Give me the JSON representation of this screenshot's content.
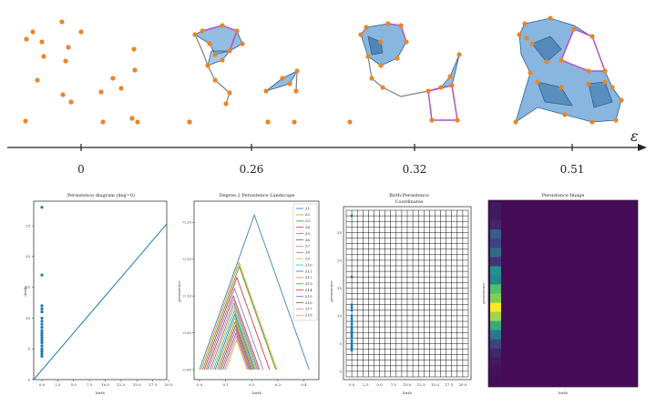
{
  "timeline": {
    "axis_symbol": "ε",
    "ticks": [
      "0",
      "0.26",
      "0.32",
      "0.51"
    ]
  },
  "colors": {
    "point": "#e8852a",
    "edge": "#7f7f7f",
    "simplex": "#3a86c8",
    "hole": "#b44fc4",
    "series_blue": "#1f77b4"
  },
  "filtration_points": [
    [
      68,
      24
    ],
    [
      36,
      35
    ],
    [
      89,
      35
    ],
    [
      46,
      46
    ],
    [
      29,
      43
    ],
    [
      75,
      52
    ],
    [
      147,
      54
    ],
    [
      48,
      62
    ],
    [
      72,
      67
    ],
    [
      148,
      77
    ],
    [
      41,
      88
    ],
    [
      124,
      86
    ],
    [
      111,
      101
    ],
    [
      69,
      104
    ],
    [
      78,
      112
    ],
    [
      133,
      97
    ],
    [
      28,
      133
    ],
    [
      113,
      134
    ],
    [
      145,
      130
    ],
    [
      151,
      134
    ],
    [
      208,
      134
    ],
    [
      294,
      134
    ]
  ],
  "panels": {
    "diagram": {
      "title": "Persistence diagram (deg=0)",
      "xlabel": "birth",
      "ylabel": "death",
      "x_ticks": [
        "0.0",
        "2.5",
        "5.0",
        "7.5",
        "10.0",
        "12.5",
        "15.0",
        "17.5",
        "20.0"
      ],
      "y_ticks": [
        "0",
        "5",
        "10",
        "15",
        "20",
        "25"
      ]
    },
    "landscape": {
      "title": "Degree 2 Persistence Landscape",
      "xlabel": "birth",
      "ylabel": "persistence",
      "x_ticks": [
        "0.0",
        "0.1",
        "0.2",
        "0.3",
        "0.4"
      ],
      "y_ticks": [
        "0.00",
        "0.05",
        "0.10",
        "0.15",
        "0.20"
      ],
      "legend": [
        "λ1",
        "λ2",
        "λ3",
        "λ4",
        "λ5",
        "λ6",
        "λ7",
        "λ8",
        "λ9",
        "λ10",
        "λ11",
        "λ12",
        "λ13",
        "λ14",
        "λ15",
        "λ16",
        "λ17",
        "λ18"
      ]
    },
    "coords": {
      "title_line1": "Birth-Persistence",
      "title_line2": "Coordinates",
      "xlabel": "birth",
      "ylabel": "persistence",
      "x_ticks": [
        "0.0",
        "2.5",
        "5.0",
        "7.5",
        "10.0",
        "12.5",
        "15.0",
        "17.5",
        "20.0"
      ],
      "y_ticks": [
        "0",
        "5",
        "10",
        "15",
        "20",
        "25"
      ]
    },
    "image": {
      "title": "Persistence Image",
      "xlabel": "birth",
      "ylabel": "persistence"
    }
  },
  "chart_data": [
    {
      "type": "scatter",
      "title": "Persistence diagram (deg=0)",
      "xlabel": "birth",
      "ylabel": "death",
      "xlim": [
        0,
        21
      ],
      "ylim": [
        0,
        29
      ],
      "diagonal": true,
      "x": [
        0,
        0,
        0,
        0,
        0,
        0,
        0,
        0,
        0,
        0,
        0,
        0,
        0,
        0,
        0,
        0,
        0,
        0,
        0,
        0
      ],
      "y": [
        28,
        17,
        12,
        11.5,
        11,
        10,
        9.5,
        9,
        8.5,
        8,
        7.6,
        7.2,
        6.8,
        6.4,
        6,
        5.5,
        5,
        4.6,
        4.2,
        3.8
      ]
    },
    {
      "type": "line",
      "title": "Degree 2 Persistence Landscape",
      "xlabel": "birth",
      "ylabel": "persistence",
      "xlim": [
        0,
        0.44
      ],
      "ylim": [
        -0.005,
        0.225
      ],
      "series": [
        {
          "name": "λ1",
          "peak_x": 0.21,
          "peak_y": 0.21,
          "start": 0.0,
          "end": 0.42
        },
        {
          "name": "λ2",
          "peak_x": 0.145,
          "peak_y": 0.145,
          "start": 0.0,
          "end": 0.29
        },
        {
          "name": "λ3",
          "peak_x": 0.14,
          "peak_y": 0.14,
          "start": 0.0,
          "end": 0.28
        },
        {
          "name": "λ4",
          "peak_x": 0.125,
          "peak_y": 0.125,
          "start": 0.0,
          "end": 0.25
        },
        {
          "name": "λ5",
          "peak_x": 0.11,
          "peak_y": 0.11,
          "start": 0.0,
          "end": 0.22
        },
        {
          "name": "λ6",
          "peak_x": 0.1,
          "peak_y": 0.1,
          "start": 0.0,
          "end": 0.2
        },
        {
          "name": "λ7",
          "peak_x": 0.095,
          "peak_y": 0.095,
          "start": 0.0,
          "end": 0.19
        },
        {
          "name": "λ8",
          "peak_x": 0.09,
          "peak_y": 0.09,
          "start": 0.0,
          "end": 0.18
        },
        {
          "name": "λ9",
          "peak_x": 0.085,
          "peak_y": 0.085,
          "start": 0.0,
          "end": 0.17
        },
        {
          "name": "λ10",
          "peak_x": 0.08,
          "peak_y": 0.08,
          "start": 0.0,
          "end": 0.16
        },
        {
          "name": "λ11",
          "peak_x": 0.075,
          "peak_y": 0.075,
          "start": 0.0,
          "end": 0.15
        },
        {
          "name": "λ12",
          "peak_x": 0.07,
          "peak_y": 0.07,
          "start": 0.0,
          "end": 0.14
        },
        {
          "name": "λ13",
          "peak_x": 0.065,
          "peak_y": 0.065,
          "start": 0.0,
          "end": 0.13
        },
        {
          "name": "λ14",
          "peak_x": 0.06,
          "peak_y": 0.06,
          "start": 0.0,
          "end": 0.12
        },
        {
          "name": "λ15",
          "peak_x": 0.055,
          "peak_y": 0.055,
          "start": 0.0,
          "end": 0.11
        },
        {
          "name": "λ16",
          "peak_x": 0.05,
          "peak_y": 0.05,
          "start": 0.0,
          "end": 0.1
        },
        {
          "name": "λ17",
          "peak_x": 0.045,
          "peak_y": 0.045,
          "start": 0.0,
          "end": 0.09
        },
        {
          "name": "λ18",
          "peak_x": 0.04,
          "peak_y": 0.04,
          "start": 0.0,
          "end": 0.08
        }
      ],
      "legend": "top-right"
    },
    {
      "type": "scatter",
      "title": "Birth-Persistence Coordinates",
      "xlabel": "birth",
      "ylabel": "persistence",
      "xlim": [
        -1,
        21
      ],
      "ylim": [
        -1,
        29
      ],
      "grid": true,
      "x": [
        0,
        0,
        0,
        0,
        0,
        0,
        0,
        0,
        0,
        0,
        0,
        0,
        0,
        0,
        0,
        0,
        0,
        0,
        0,
        0
      ],
      "y": [
        28,
        17,
        12,
        11.5,
        11,
        10,
        9.5,
        9,
        8.5,
        8,
        7.6,
        7.2,
        6.8,
        6.4,
        6,
        5.5,
        5,
        4.6,
        4.2,
        3.8
      ]
    },
    {
      "type": "heatmap",
      "title": "Persistence Image",
      "xlabel": "birth",
      "ylabel": "persistence",
      "column_values": [
        0.05,
        0.05,
        0.1,
        0.3,
        0.2,
        0.35,
        0.15,
        0.5,
        0.45,
        0.7,
        0.8,
        1.0,
        0.85,
        0.6,
        0.4,
        0.2,
        0.1,
        0.05,
        0.02,
        0.01
      ]
    }
  ]
}
